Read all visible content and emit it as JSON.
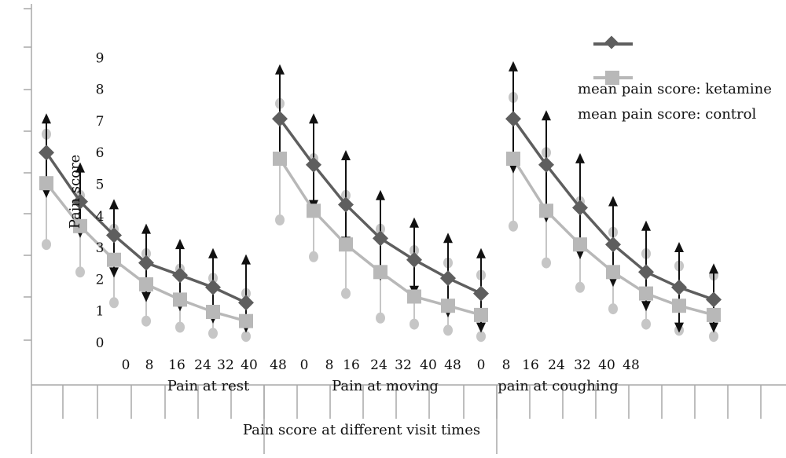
{
  "chart_data": {
    "type": "line",
    "title": "",
    "xlabel": "Pain score at different visit times",
    "ylabel": "Pain score",
    "ylim": [
      0,
      9
    ],
    "yticks": [
      0,
      1,
      2,
      3,
      4,
      5,
      6,
      7,
      8,
      9
    ],
    "xtick_labels": [
      "0",
      "8",
      "16",
      "24",
      "32",
      "40",
      "48",
      "0",
      "8",
      "16",
      "24",
      "32",
      "40",
      "48",
      "0",
      "8",
      "16",
      "24",
      "32",
      "40",
      "48"
    ],
    "group_labels": [
      "Pain at rest",
      "Pain at moving",
      "pain at coughing"
    ],
    "legend_position": "top-right",
    "colors": {
      "ketamine": "#5e5e5e",
      "control": "#b8b8b8",
      "ketamine_error": "#111111",
      "control_error": "#c6c6c6"
    },
    "groups": [
      {
        "label": "Pain at rest",
        "x": [
          0,
          8,
          16,
          24,
          32,
          40,
          48
        ],
        "series": [
          {
            "name": "mean pain score: ketamine",
            "values": [
              6.2,
              4.6,
              3.5,
              2.6,
              2.2,
              1.8,
              1.3
            ],
            "err_low": [
              5.0,
              3.7,
              2.4,
              1.6,
              1.3,
              0.9,
              0.6
            ],
            "err_high": [
              7.2,
              5.6,
              4.4,
              3.6,
              3.1,
              2.8,
              2.6
            ]
          },
          {
            "name": "mean pain score: control",
            "values": [
              5.2,
              3.8,
              2.7,
              1.9,
              1.4,
              1.0,
              0.7
            ],
            "err_low": [
              3.2,
              2.3,
              1.3,
              0.7,
              0.5,
              0.3,
              0.2
            ],
            "err_high": [
              6.8,
              4.8,
              3.7,
              2.9,
              2.4,
              2.1,
              1.6
            ]
          }
        ]
      },
      {
        "label": "Pain at moving",
        "x": [
          0,
          8,
          16,
          24,
          32,
          40,
          48
        ],
        "series": [
          {
            "name": "mean pain score: ketamine",
            "values": [
              7.3,
              5.8,
              4.5,
              3.4,
              2.7,
              2.1,
              1.6
            ],
            "err_low": [
              6.1,
              4.6,
              3.4,
              2.3,
              1.8,
              1.1,
              0.6
            ],
            "err_high": [
              8.8,
              7.2,
              6.0,
              4.7,
              3.8,
              3.3,
              2.8
            ]
          },
          {
            "name": "mean pain score: control",
            "values": [
              6.0,
              4.3,
              3.2,
              2.3,
              1.5,
              1.2,
              0.9
            ],
            "err_low": [
              4.0,
              2.8,
              1.6,
              0.8,
              0.6,
              0.4,
              0.2
            ],
            "err_high": [
              7.8,
              6.0,
              4.8,
              3.7,
              3.0,
              2.6,
              2.2
            ]
          }
        ]
      },
      {
        "label": "pain at coughing",
        "x": [
          0,
          8,
          16,
          24,
          32,
          40,
          48
        ],
        "series": [
          {
            "name": "mean pain score: ketamine",
            "values": [
              7.3,
              5.8,
              4.4,
              3.2,
              2.3,
              1.8,
              1.4
            ],
            "err_low": [
              5.8,
              4.2,
              3.0,
              2.1,
              1.3,
              0.6,
              0.6
            ],
            "err_high": [
              8.9,
              7.3,
              5.9,
              4.5,
              3.7,
              3.0,
              2.3
            ]
          },
          {
            "name": "mean pain score: control",
            "values": [
              6.0,
              4.3,
              3.2,
              2.3,
              1.6,
              1.2,
              0.9
            ],
            "err_low": [
              3.8,
              2.6,
              1.8,
              1.1,
              0.6,
              0.4,
              0.2
            ],
            "err_high": [
              8.0,
              6.2,
              4.6,
              3.6,
              2.9,
              2.5,
              2.2
            ]
          }
        ]
      }
    ]
  }
}
